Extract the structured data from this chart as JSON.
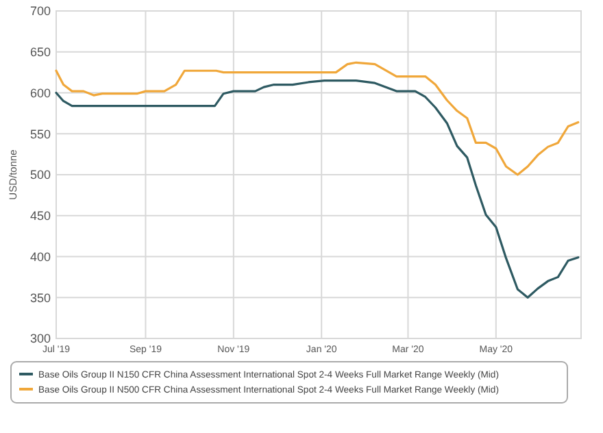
{
  "chart_data": {
    "type": "line",
    "ylabel": "USD/tonne",
    "xlim": [
      "2019-07-01",
      "2020-06-29"
    ],
    "xticks": [
      {
        "value": "2019-07-01",
        "label": "Jul '19"
      },
      {
        "value": "2019-09-01",
        "label": "Sep '19"
      },
      {
        "value": "2019-11-01",
        "label": "Nov '19"
      },
      {
        "value": "2020-01-01",
        "label": "Jan '20"
      },
      {
        "value": "2020-03-01",
        "label": "Mar '20"
      },
      {
        "value": "2020-05-01",
        "label": "May '20"
      }
    ],
    "ylim": [
      300,
      700
    ],
    "yticks": [
      300,
      350,
      400,
      450,
      500,
      550,
      600,
      650,
      700
    ],
    "grid": true,
    "legend": "bottom",
    "marker": "none",
    "line_style": "solid",
    "series": [
      {
        "name": "Base Oils Group II N150 CFR China Assessment International Spot 2-4 Weeks Full Market Range Weekly (Mid)",
        "color": "#2e5a62",
        "x": [
          "2019-07-01",
          "2019-07-06",
          "2019-07-12",
          "2019-10-19",
          "2019-10-25",
          "2019-11-01",
          "2019-11-16",
          "2019-11-22",
          "2019-11-29",
          "2019-12-12",
          "2019-12-23",
          "2020-01-03",
          "2020-01-25",
          "2020-02-07",
          "2020-02-22",
          "2020-03-06",
          "2020-03-13",
          "2020-03-20",
          "2020-03-28",
          "2020-04-04",
          "2020-04-11",
          "2020-04-17",
          "2020-04-24",
          "2020-05-01",
          "2020-05-08",
          "2020-05-16",
          "2020-05-23",
          "2020-05-30",
          "2020-06-06",
          "2020-06-13",
          "2020-06-20",
          "2020-06-27"
        ],
        "values": [
          600,
          590,
          584,
          584,
          599,
          602,
          602,
          607,
          610,
          610,
          613,
          615,
          615,
          612,
          602,
          602,
          595,
          582,
          563,
          535,
          521,
          487,
          451,
          436,
          398,
          360,
          350,
          361,
          370,
          375,
          395,
          399
        ]
      },
      {
        "name": "Base Oils Group II N500 CFR China Assessment International Spot 2-4 Weeks Full Market Range Weekly (Mid)",
        "color": "#f0a73a",
        "x": [
          "2019-07-01",
          "2019-07-06",
          "2019-07-12",
          "2019-07-20",
          "2019-07-27",
          "2019-08-02",
          "2019-08-26",
          "2019-09-01",
          "2019-09-14",
          "2019-09-22",
          "2019-09-28",
          "2019-10-20",
          "2019-10-25",
          "2020-01-11",
          "2020-01-19",
          "2020-01-25",
          "2020-02-07",
          "2020-02-22",
          "2020-03-13",
          "2020-03-20",
          "2020-03-28",
          "2020-04-04",
          "2020-04-11",
          "2020-04-17",
          "2020-04-24",
          "2020-05-01",
          "2020-05-08",
          "2020-05-16",
          "2020-05-23",
          "2020-05-30",
          "2020-06-06",
          "2020-06-13",
          "2020-06-20",
          "2020-06-27"
        ],
        "values": [
          627,
          610,
          602,
          602,
          597,
          599,
          599,
          602,
          602,
          610,
          627,
          627,
          625,
          625,
          635,
          637,
          635,
          620,
          620,
          610,
          591,
          578,
          569,
          539,
          539,
          532,
          510,
          500,
          510,
          524,
          534,
          539,
          559,
          564
        ]
      }
    ]
  }
}
